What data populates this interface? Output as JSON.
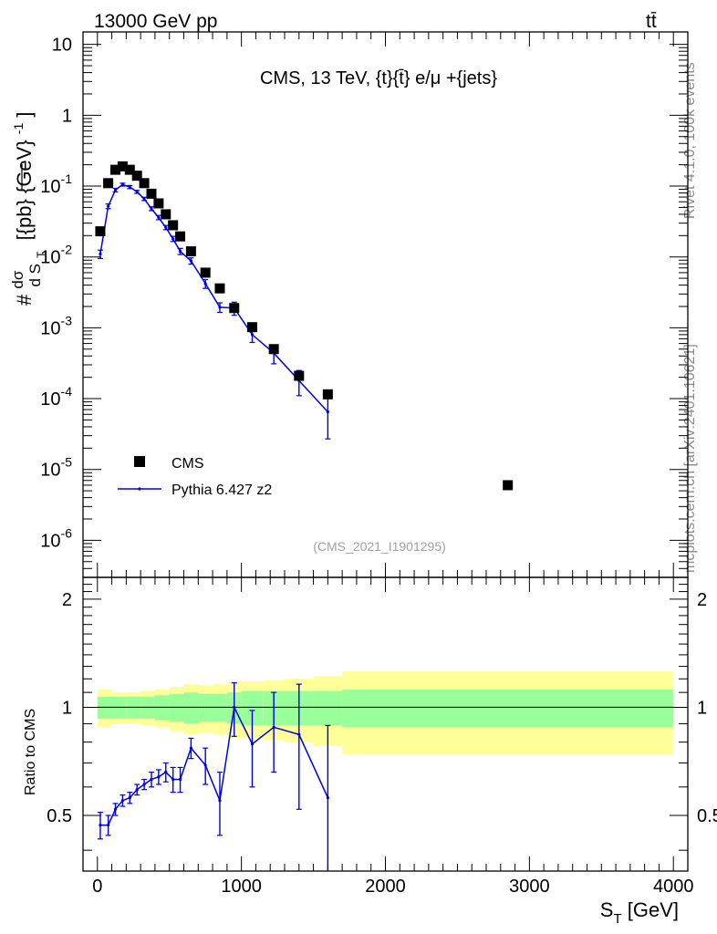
{
  "header": {
    "left": "13000 GeV pp",
    "right": "tt̄"
  },
  "chart_data": {
    "type": "scatter",
    "title": "CMS, 13 TeV, {t}{t̄} e/μ +{jets}",
    "ylabel": {
      "prefix": "#",
      "frac_num": "dσ",
      "frac_den": "d S",
      "frac_den_sub": "T",
      "units": "[{pb} {GeV}",
      "units_sup": "-1",
      "units_end": "]"
    },
    "xlabel": {
      "main": "S",
      "sub": "T",
      "units": " [GeV]"
    },
    "ratio_ylabel": "Ratio to CMS",
    "watermark": "(CMS_2021_I1901295)",
    "side_text_top": "Rivet 4.1.0,  100k events",
    "side_text_bottom": "mcplots.cern.ch [arXiv:2401.10621]",
    "xlim": [
      -100,
      4100
    ],
    "ylim_main": [
      3e-07,
      15
    ],
    "ylim_ratio": [
      0.35,
      2.3
    ],
    "xticks": [
      "0",
      "1000",
      "2000",
      "3000",
      "4000"
    ],
    "yticks_main": [
      {
        "base": "10",
        "exp": "-6"
      },
      {
        "base": "10",
        "exp": "-5"
      },
      {
        "base": "10",
        "exp": "-4"
      },
      {
        "base": "10",
        "exp": "-3"
      },
      {
        "base": "10",
        "exp": "-2"
      },
      {
        "base": "10",
        "exp": "-1"
      },
      {
        "base": "1",
        "exp": ""
      },
      {
        "base": "10",
        "exp": ""
      }
    ],
    "yticks_ratio": [
      "0.5",
      "1",
      "2"
    ],
    "legend": {
      "position": "bottom-left",
      "entries": [
        "CMS",
        "Pythia 6.427 z2"
      ]
    },
    "series": [
      {
        "name": "CMS",
        "x": [
          20,
          75,
          125,
          175,
          225,
          275,
          325,
          375,
          425,
          475,
          525,
          575,
          650,
          750,
          850,
          950,
          1075,
          1225,
          1400,
          1600,
          2850
        ],
        "values": [
          0.023,
          0.11,
          0.17,
          0.19,
          0.17,
          0.14,
          0.11,
          0.078,
          0.057,
          0.04,
          0.028,
          0.0195,
          0.012,
          0.006,
          0.0036,
          0.0019,
          0.00102,
          0.0005,
          0.00021,
          0.000115,
          6e-06
        ]
      },
      {
        "name": "Pythia 6.427 z2",
        "x": [
          20,
          75,
          125,
          175,
          225,
          275,
          325,
          375,
          425,
          475,
          525,
          575,
          650,
          750,
          850,
          950,
          1075,
          1225,
          1400,
          1600
        ],
        "values": [
          0.011,
          0.052,
          0.088,
          0.105,
          0.097,
          0.083,
          0.066,
          0.048,
          0.036,
          0.026,
          0.018,
          0.012,
          0.0088,
          0.0042,
          0.00195,
          0.0019,
          0.0008,
          0.00044,
          0.00018,
          6.5e-05
        ],
        "err_lo": [
          0.0015,
          0.004,
          0.005,
          0.005,
          0.005,
          0.004,
          0.0035,
          0.003,
          0.0025,
          0.0018,
          0.0015,
          0.0012,
          0.0009,
          0.0006,
          0.0003,
          0.0004,
          0.00018,
          0.00013,
          7e-05,
          3.8e-05
        ],
        "err_hi": [
          0.0015,
          0.004,
          0.005,
          0.005,
          0.005,
          0.004,
          0.0035,
          0.003,
          0.0025,
          0.0018,
          0.0015,
          0.0012,
          0.0009,
          0.0006,
          0.0003,
          0.0004,
          0.00018,
          0.00013,
          7e-05,
          3.8e-05
        ]
      }
    ],
    "ratio": {
      "x": [
        20,
        75,
        125,
        175,
        225,
        275,
        325,
        375,
        425,
        475,
        525,
        575,
        650,
        750,
        850,
        950,
        1075,
        1225,
        1400,
        1600
      ],
      "values": [
        0.47,
        0.47,
        0.52,
        0.55,
        0.56,
        0.59,
        0.61,
        0.63,
        0.64,
        0.66,
        0.63,
        0.63,
        0.77,
        0.69,
        0.55,
        1.0,
        0.79,
        0.88,
        0.84,
        0.56
      ],
      "err": [
        0.04,
        0.03,
        0.02,
        0.02,
        0.02,
        0.02,
        0.02,
        0.03,
        0.03,
        0.04,
        0.05,
        0.05,
        0.05,
        0.08,
        0.11,
        0.17,
        0.19,
        0.22,
        0.32,
        0.33
      ],
      "band_edges": [
        0,
        100,
        200,
        300,
        400,
        500,
        600,
        700,
        800,
        900,
        1000,
        1150,
        1300,
        1500,
        1700,
        4000
      ],
      "band_inner": [
        0.07,
        0.07,
        0.07,
        0.07,
        0.08,
        0.09,
        0.1,
        0.09,
        0.09,
        0.1,
        0.11,
        0.11,
        0.11,
        0.11,
        0.12
      ],
      "band_outer": [
        0.12,
        0.1,
        0.1,
        0.11,
        0.12,
        0.14,
        0.16,
        0.15,
        0.16,
        0.18,
        0.18,
        0.19,
        0.2,
        0.22,
        0.26
      ]
    }
  }
}
